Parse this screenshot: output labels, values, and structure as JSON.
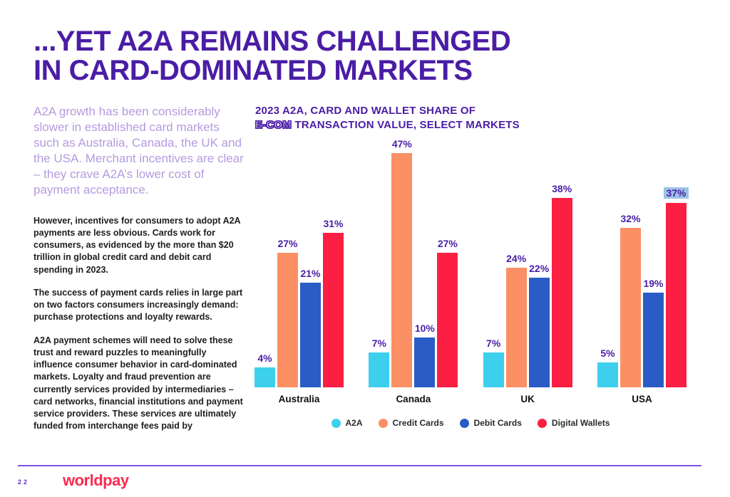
{
  "page": {
    "title_line1": "...YET A2A REMAINS CHALLENGED",
    "title_line2": "IN CARD-DOMINATED MARKETS",
    "page_number": "22",
    "brand": "worldpay"
  },
  "left_column": {
    "intro": "A2A growth has been considerably slower in established card markets such as Australia, Canada, the UK and the USA. Merchant incentives are clear – they crave A2A’s lower cost of payment acceptance.",
    "paragraphs": [
      "However, incentives for consumers to adopt A2A payments are less obvious. Cards work for consumers, as evidenced by the more than $20 trillion in global credit card and debit card spending in 2023.",
      "The success of payment cards relies in large part on two factors consumers increasingly demand: purchase protections and loyalty rewards.",
      "A2A payment schemes will need to solve these trust and reward puzzles to meaningfully influence consumer behavior in card-dominated markets. Loyalty and fraud prevention are currently services provided by intermediaries – card networks, financial institutions and payment service providers. These services are ultimately funded from interchange fees paid by"
    ]
  },
  "chart": {
    "title_line1": "2023 A2A, CARD AND WALLET SHARE OF",
    "title_line2_outline": "E-COM",
    "title_line2_rest": " TRANSACTION VALUE, SELECT MARKETS"
  },
  "chart_data": {
    "type": "bar",
    "title": "2023 A2A, CARD AND WALLET SHARE OF E-COM TRANSACTION VALUE, SELECT MARKETS",
    "categories": [
      "Australia",
      "Canada",
      "UK",
      "USA"
    ],
    "series": [
      {
        "name": "A2A",
        "color": "#3DD0ED",
        "values": [
          4,
          7,
          7,
          5
        ]
      },
      {
        "name": "Credit Cards",
        "color": "#FB9065",
        "values": [
          27,
          47,
          24,
          32
        ]
      },
      {
        "name": "Debit Cards",
        "color": "#2A5CC5",
        "values": [
          21,
          10,
          22,
          19
        ]
      },
      {
        "name": "Digital Wallets",
        "color": "#FB1F43",
        "values": [
          31,
          27,
          38,
          37
        ]
      }
    ],
    "value_suffix": "%",
    "ylim": [
      0,
      50
    ],
    "grid": false,
    "legend_position": "bottom",
    "highlighted_value": {
      "category": "USA",
      "series": "Digital Wallets",
      "highlight_color": "#9DC3E6"
    }
  },
  "colors": {
    "heading_purple": "#4A1DA5",
    "intro_lavender": "#B49BE0",
    "footer_rule_purple": "#7B53DC",
    "brand_red": "#FC2B4E",
    "label_highlight_blue": "#9DC3E6"
  }
}
